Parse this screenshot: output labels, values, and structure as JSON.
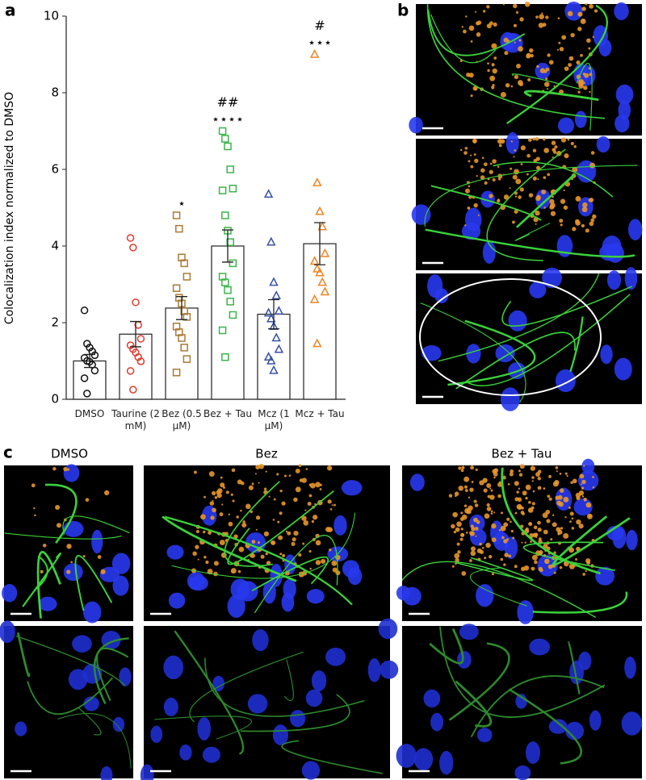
{
  "chart_data": {
    "type": "bar",
    "y_label": "Colocalization index normalized to DMSO",
    "categories": [
      "DMSO",
      "Taurine (2 mM)",
      "Bez (0.5 µM)",
      "Bez + Tau",
      "Mcz (1 µM)",
      "Mcz + Tau"
    ],
    "values": [
      1.0,
      1.7,
      2.38,
      4.0,
      2.22,
      4.06
    ],
    "errors": [
      0.17,
      0.33,
      0.3,
      0.42,
      0.38,
      0.55
    ],
    "points": [
      [
        2.32,
        1.45,
        1.35,
        1.25,
        1.15,
        1.08,
        1.0,
        0.98,
        0.9,
        0.75,
        0.55,
        0.15
      ],
      [
        4.21,
        3.96,
        2.53,
        1.94,
        1.58,
        1.41,
        1.31,
        1.22,
        1.1,
        0.99,
        0.74,
        0.25
      ],
      [
        4.8,
        4.45,
        3.7,
        3.55,
        3.2,
        2.9,
        2.65,
        2.5,
        2.3,
        2.15,
        1.9,
        1.75,
        1.6,
        1.35,
        1.05,
        0.7
      ],
      [
        7.0,
        6.8,
        6.6,
        6.0,
        5.5,
        5.45,
        4.8,
        4.4,
        4.1,
        3.55,
        3.2,
        3.05,
        2.85,
        2.55,
        2.2,
        1.8,
        1.1
      ],
      [
        5.35,
        4.1,
        3.05,
        2.7,
        2.3,
        2.25,
        2.1,
        1.9,
        1.6,
        1.3,
        1.1,
        1.0,
        0.75
      ],
      [
        9.0,
        5.65,
        4.9,
        4.5,
        3.8,
        3.6,
        3.4,
        3.3,
        3.05,
        2.8,
        2.6,
        1.45
      ]
    ],
    "colors": [
      "#111111",
      "#e33a2c",
      "#a87a35",
      "#3bb54a",
      "#3652a6",
      "#ef8422"
    ],
    "markers": [
      "circle",
      "circle",
      "square",
      "square",
      "triangle",
      "triangle"
    ],
    "significance": [
      null,
      null,
      "⋆",
      "⋆⋆⋆⋆",
      null,
      "⋆⋆⋆"
    ],
    "significance_vs_single": [
      null,
      null,
      null,
      "##",
      null,
      "#"
    ],
    "ylim": [
      0,
      10
    ],
    "yticks": [
      0,
      2,
      4,
      6,
      8,
      10
    ]
  },
  "panels": {
    "a": "a",
    "b": "b",
    "c": "c",
    "c_columns": [
      "DMSO",
      "Bez",
      "Bez + Tau"
    ]
  }
}
